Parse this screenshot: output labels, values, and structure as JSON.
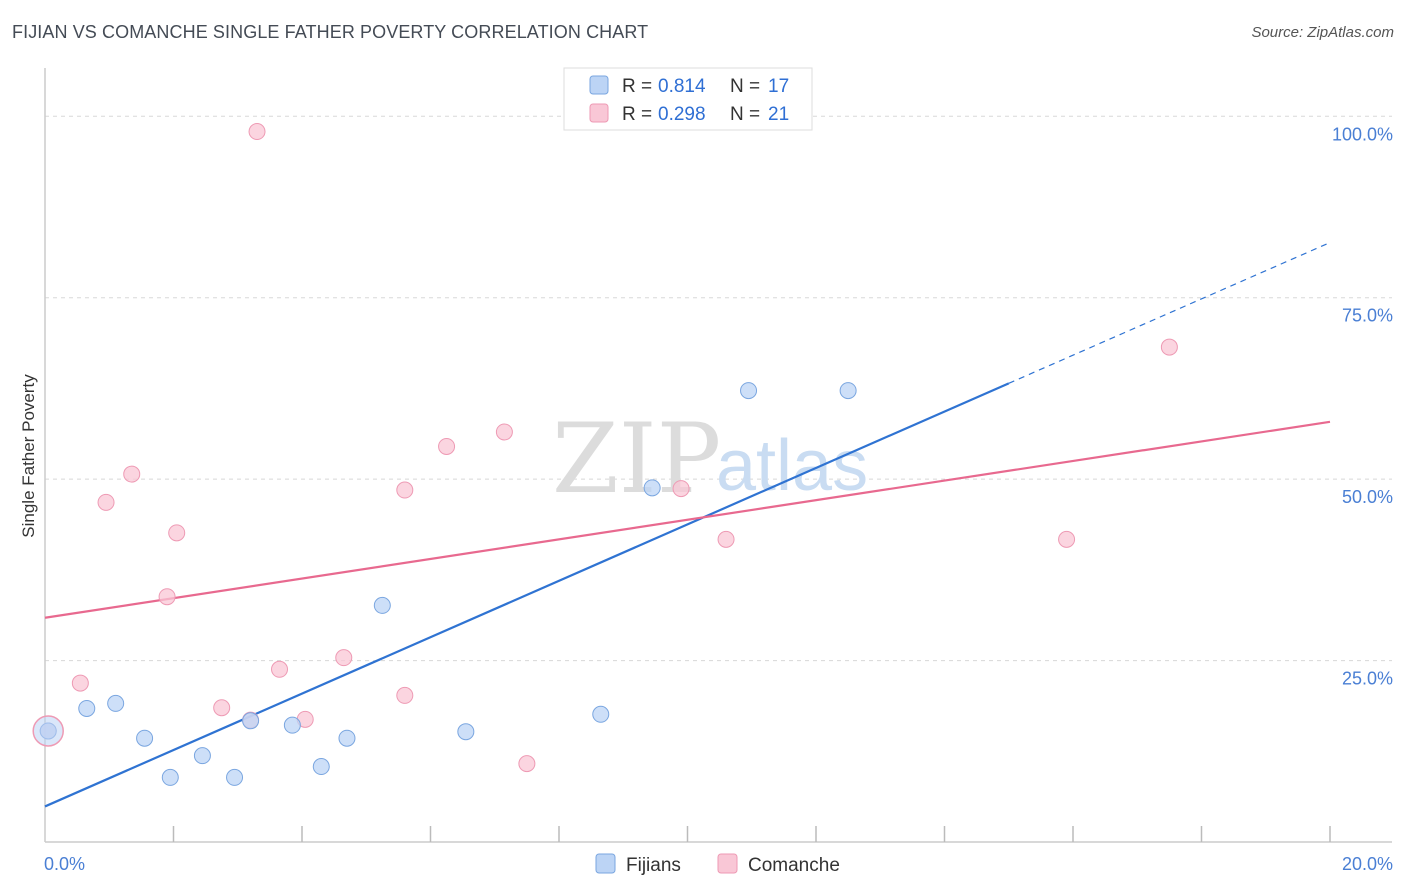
{
  "title": "FIJIAN VS COMANCHE SINGLE FATHER POVERTY CORRELATION CHART",
  "source": "Source: ZipAtlas.com",
  "watermark": {
    "zip": "ZIP",
    "atlas": "atlas"
  },
  "legend": {
    "rows": [
      {
        "r_label": "R =",
        "r_value": "0.814",
        "n_label": "N =",
        "n_value": "17"
      },
      {
        "r_label": "R =",
        "r_value": "0.298",
        "n_label": "N =",
        "n_value": "21"
      }
    ]
  },
  "colors": {
    "fijians_fill": "#bcd4f5",
    "fijians_stroke": "#7aa6e0",
    "fijians_line": "#2f73d2",
    "comanche_fill": "#f9c7d6",
    "comanche_stroke": "#ee9ab4",
    "comanche_line": "#e8698f",
    "grid": "#d8d8d8",
    "tick_text": "#4a7fd4"
  },
  "chart_data": {
    "type": "scatter",
    "xlabel": "",
    "ylabel": "Single Father Poverty",
    "xlim": [
      0,
      20
    ],
    "ylim": [
      0,
      100
    ],
    "x_ticks": [
      "0.0%",
      "20.0%"
    ],
    "y_ticks": [
      "25.0%",
      "50.0%",
      "75.0%",
      "100.0%"
    ],
    "y_tick_values": [
      25,
      50,
      75,
      100
    ],
    "legend_position": "top-center",
    "series": [
      {
        "name": "Fijians",
        "points": [
          [
            0.05,
            15.3
          ],
          [
            0.65,
            18.4
          ],
          [
            1.1,
            19.1
          ],
          [
            1.55,
            14.3
          ],
          [
            1.95,
            8.9
          ],
          [
            2.45,
            11.9
          ],
          [
            2.95,
            8.9
          ],
          [
            3.2,
            16.7
          ],
          [
            3.85,
            16.1
          ],
          [
            4.3,
            10.4
          ],
          [
            4.7,
            14.3
          ],
          [
            5.25,
            32.6
          ],
          [
            6.55,
            15.2
          ],
          [
            8.65,
            17.6
          ],
          [
            9.45,
            48.8
          ],
          [
            10.95,
            62.2
          ],
          [
            12.5,
            62.2
          ]
        ],
        "trend": {
          "x": [
            0,
            15
          ],
          "y": [
            4.9,
            63.2
          ],
          "dashed_to": {
            "x": 20,
            "y": 82.6
          }
        }
      },
      {
        "name": "Comanche",
        "points": [
          [
            0.05,
            15.3
          ],
          [
            0.55,
            21.9
          ],
          [
            0.95,
            46.8
          ],
          [
            1.35,
            50.7
          ],
          [
            1.9,
            33.8
          ],
          [
            2.05,
            42.6
          ],
          [
            2.75,
            18.5
          ],
          [
            3.2,
            16.8
          ],
          [
            3.65,
            23.8
          ],
          [
            4.05,
            16.9
          ],
          [
            4.65,
            25.4
          ],
          [
            5.6,
            20.2
          ],
          [
            5.6,
            48.5
          ],
          [
            6.25,
            54.5
          ],
          [
            7.15,
            56.5
          ],
          [
            7.5,
            10.8
          ],
          [
            9.9,
            48.7
          ],
          [
            10.6,
            41.7
          ],
          [
            15.9,
            41.7
          ],
          [
            17.5,
            68.2
          ],
          [
            3.3,
            97.9
          ]
        ],
        "trend": {
          "x": [
            0,
            20
          ],
          "y": [
            30.9,
            57.9
          ]
        }
      }
    ]
  },
  "bottom_legend": {
    "fijians": "Fijians",
    "comanche": "Comanche"
  }
}
